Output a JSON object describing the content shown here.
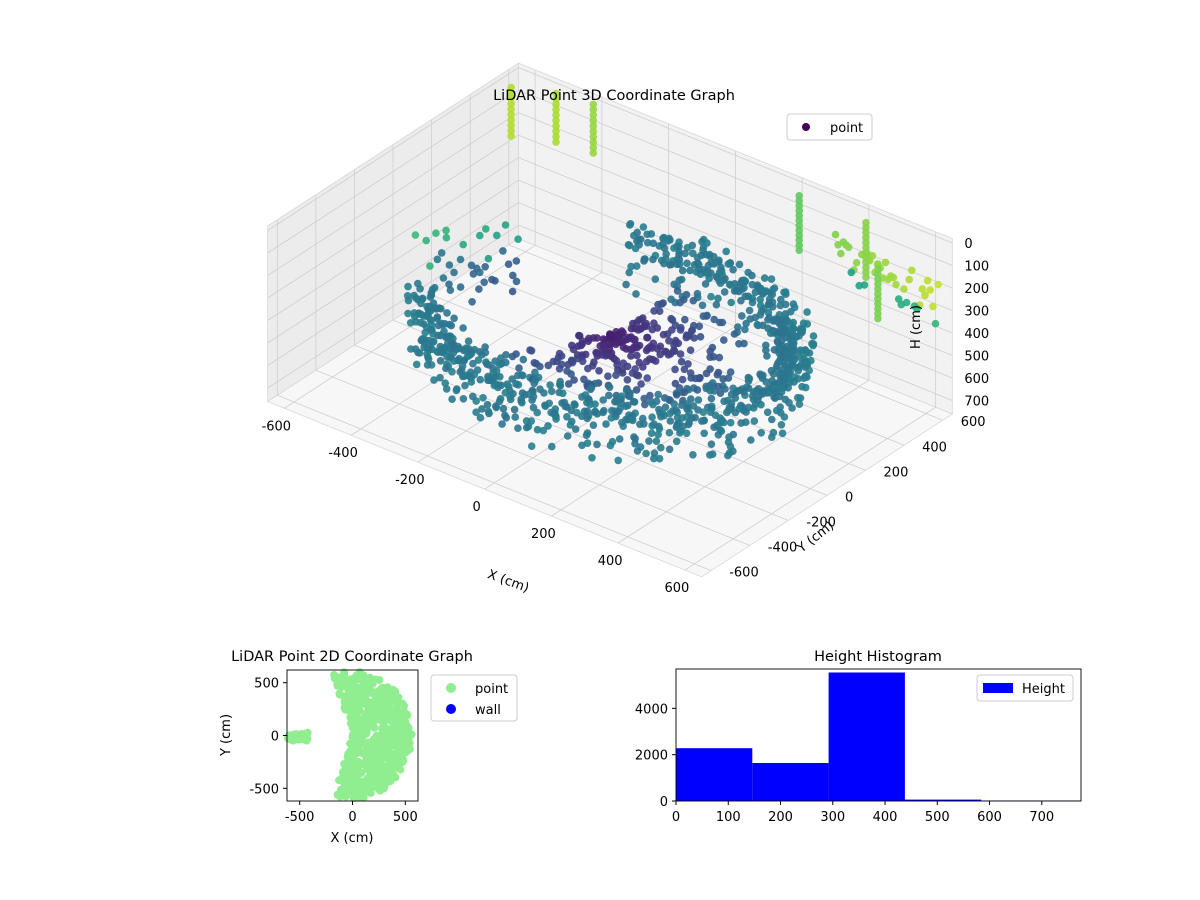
{
  "figure": {
    "background": "#ffffff"
  },
  "chart_data": [
    {
      "id": "scatter3d",
      "type": "scatter",
      "projection": "3d",
      "title": "LiDAR Point 3D Coordinate Graph",
      "xlabel": "X (cm)",
      "ylabel": "Y (cm)",
      "zlabel": "H (cm)",
      "xlim": [
        -650,
        650
      ],
      "ylim": [
        -650,
        650
      ],
      "zlim": [
        760,
        -20
      ],
      "xticks": [
        -600,
        -400,
        -200,
        0,
        200,
        400,
        600
      ],
      "yticks": [
        -600,
        -400,
        -200,
        0,
        200,
        400,
        600
      ],
      "zticks": [
        0,
        100,
        200,
        300,
        400,
        500,
        600,
        700
      ],
      "zaxis_inverted": true,
      "grid": true,
      "legend": {
        "position": "top-right",
        "entries": [
          "point"
        ]
      },
      "colormap": "viridis",
      "series": [
        {
          "name": "point",
          "color": "#440154"
        }
      ]
    },
    {
      "id": "scatter2d",
      "type": "scatter",
      "title": "LiDAR Point 2D Coordinate Graph",
      "xlabel": "X (cm)",
      "ylabel": "Y (cm)",
      "xlim": [
        -620,
        620
      ],
      "ylim": [
        -620,
        620
      ],
      "xticks": [
        -500,
        0,
        500
      ],
      "yticks": [
        -500,
        0,
        500
      ],
      "legend": {
        "position": "outside-right",
        "entries": [
          "point",
          "wall"
        ]
      },
      "series": [
        {
          "name": "point",
          "color": "#90ee90"
        },
        {
          "name": "wall",
          "color": "#0000ff",
          "x": [],
          "y": []
        }
      ]
    },
    {
      "id": "histogram",
      "type": "bar",
      "title": "Height Histogram",
      "xlabel": "",
      "ylabel": "",
      "xlim": [
        0,
        775
      ],
      "ylim": [
        0,
        5700
      ],
      "xticks": [
        0,
        100,
        200,
        300,
        400,
        500,
        600,
        700
      ],
      "yticks": [
        0,
        2000,
        4000
      ],
      "bin_edges": [
        0,
        146,
        292,
        438,
        584,
        775
      ],
      "values": [
        2280,
        1640,
        5550,
        60,
        20
      ],
      "legend": {
        "position": "top-right",
        "entries": [
          "Height"
        ]
      },
      "series": [
        {
          "name": "Height",
          "color": "#0000ff"
        }
      ]
    }
  ]
}
